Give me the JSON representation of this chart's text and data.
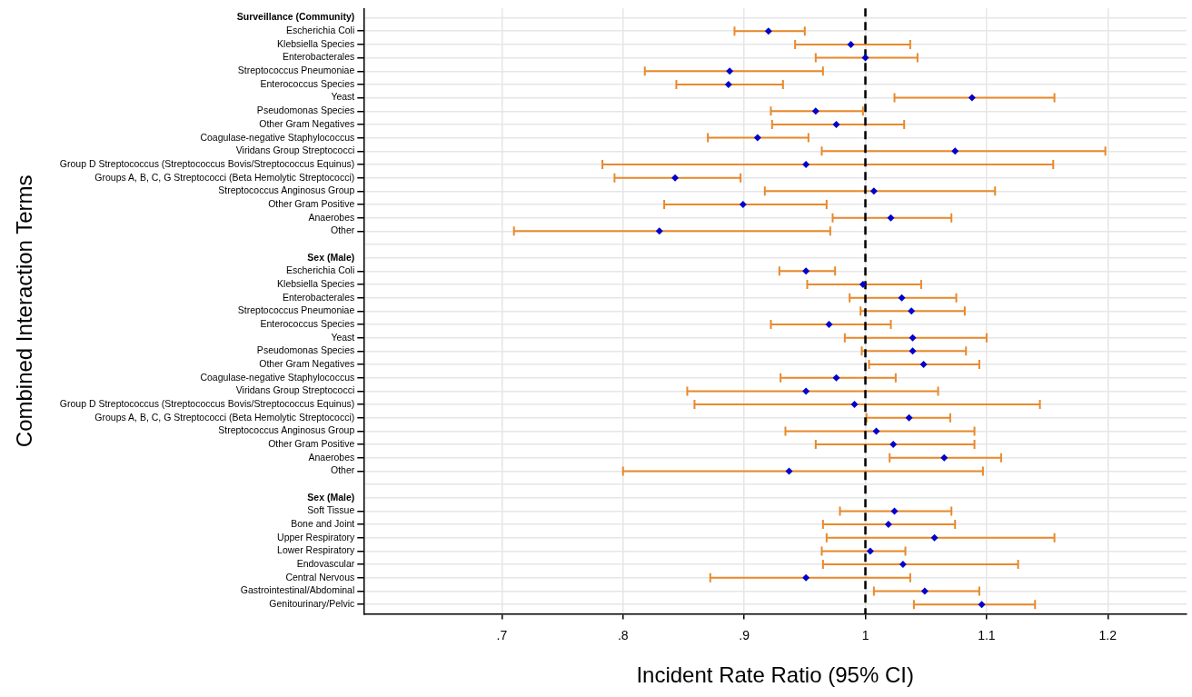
{
  "chart_data": {
    "type": "scatter",
    "orientation": "horizontal",
    "xlabel": "Incident Rate Ratio (95% CI)",
    "ylabel": "Combined Interaction Terms",
    "categories": [
      "Surveillance (Community)",
      "Escherichia Coli",
      "Klebsiella Species",
      "Enterobacterales",
      "Streptococcus Pneumoniae",
      "Enterococcus Species",
      "Yeast",
      "Pseudomonas Species",
      "Other Gram Negatives",
      "Coagulase-negative Staphylococcus",
      "Viridans Group Streptococci",
      "Group D Streptococcus (Streptococcus Bovis/Streptococcus Equinus)",
      "Groups A, B, C, G Streptococci (Beta Hemolytic Streptococci)",
      "Streptococcus Anginosus Group",
      "Other Gram Positive",
      "Anaerobes",
      "Other",
      null,
      "Sex (Male)",
      "Escherichia Coli",
      "Klebsiella Species",
      "Enterobacterales",
      "Streptococcus Pneumoniae",
      "Enterococcus Species",
      "Yeast",
      "Pseudomonas Species",
      "Other Gram Negatives",
      "Coagulase-negative Staphylococcus",
      "Viridans Group Streptococci",
      "Group D Streptococcus (Streptococcus Bovis/Streptococcus Equinus)",
      "Groups A, B, C, G Streptococci (Beta Hemolytic Streptococci)",
      "Streptococcus Anginosus Group",
      "Other Gram Positive",
      "Anaerobes",
      "Other",
      null,
      "Sex (Male)",
      "Soft Tissue",
      "Bone and Joint",
      "Upper Respiratory",
      "Lower Respiratory",
      "Endovascular",
      "Central Nervous",
      "Gastrointestinal/Abdominal",
      "Genitourinary/Pelvic"
    ],
    "series": [
      {
        "color": "#0000cc",
        "values": [
          null,
          0.92,
          0.988,
          1.0,
          0.888,
          0.887,
          1.088,
          0.959,
          0.976,
          0.911,
          1.074,
          0.951,
          0.843,
          1.007,
          0.899,
          1.021,
          0.83,
          null,
          null,
          0.951,
          0.998,
          1.03,
          1.038,
          0.97,
          1.039,
          1.039,
          1.048,
          0.976,
          0.951,
          0.991,
          1.036,
          1.009,
          1.023,
          1.065,
          0.937,
          null,
          null,
          1.024,
          1.019,
          1.057,
          1.004,
          1.031,
          0.951,
          1.049,
          1.096
        ],
        "errors": [
          null,
          [
            0.892,
            0.95
          ],
          [
            0.942,
            1.037
          ],
          [
            0.959,
            1.043
          ],
          [
            0.818,
            0.965
          ],
          [
            0.844,
            0.932
          ],
          [
            1.024,
            1.156
          ],
          [
            0.922,
            0.998
          ],
          [
            0.923,
            1.032
          ],
          [
            0.87,
            0.953
          ],
          [
            0.964,
            1.198
          ],
          [
            0.783,
            1.155
          ],
          [
            0.793,
            0.897
          ],
          [
            0.917,
            1.107
          ],
          [
            0.834,
            0.968
          ],
          [
            0.973,
            1.071
          ],
          [
            0.71,
            0.971
          ],
          null,
          null,
          [
            0.929,
            0.975
          ],
          [
            0.952,
            1.046
          ],
          [
            0.987,
            1.075
          ],
          [
            0.996,
            1.082
          ],
          [
            0.922,
            1.021
          ],
          [
            0.983,
            1.1
          ],
          [
            0.997,
            1.083
          ],
          [
            1.003,
            1.094
          ],
          [
            0.93,
            1.025
          ],
          [
            0.853,
            1.06
          ],
          [
            0.859,
            1.144
          ],
          [
            1.001,
            1.07
          ],
          [
            0.934,
            1.09
          ],
          [
            0.959,
            1.09
          ],
          [
            1.02,
            1.112
          ],
          [
            0.8,
            1.097
          ],
          null,
          null,
          [
            0.979,
            1.071
          ],
          [
            0.965,
            1.074
          ],
          [
            0.968,
            1.156
          ],
          [
            0.964,
            1.033
          ],
          [
            0.965,
            1.126
          ],
          [
            0.872,
            1.037
          ],
          [
            1.007,
            1.094
          ],
          [
            1.04,
            1.14
          ]
        ]
      }
    ],
    "xlim": [
      0.586,
      1.265
    ],
    "xticks": [
      {
        "value": 0.7,
        "label": ".7"
      },
      {
        "value": 0.8,
        "label": ".8"
      },
      {
        "value": 0.9,
        "label": ".9"
      },
      1,
      1.1,
      1.2
    ],
    "ref_lines": [
      {
        "axis": "x",
        "value": 1,
        "color": "#000000",
        "line_style": "dashed"
      }
    ],
    "grid": true,
    "legend": false,
    "marker": "diamond"
  }
}
